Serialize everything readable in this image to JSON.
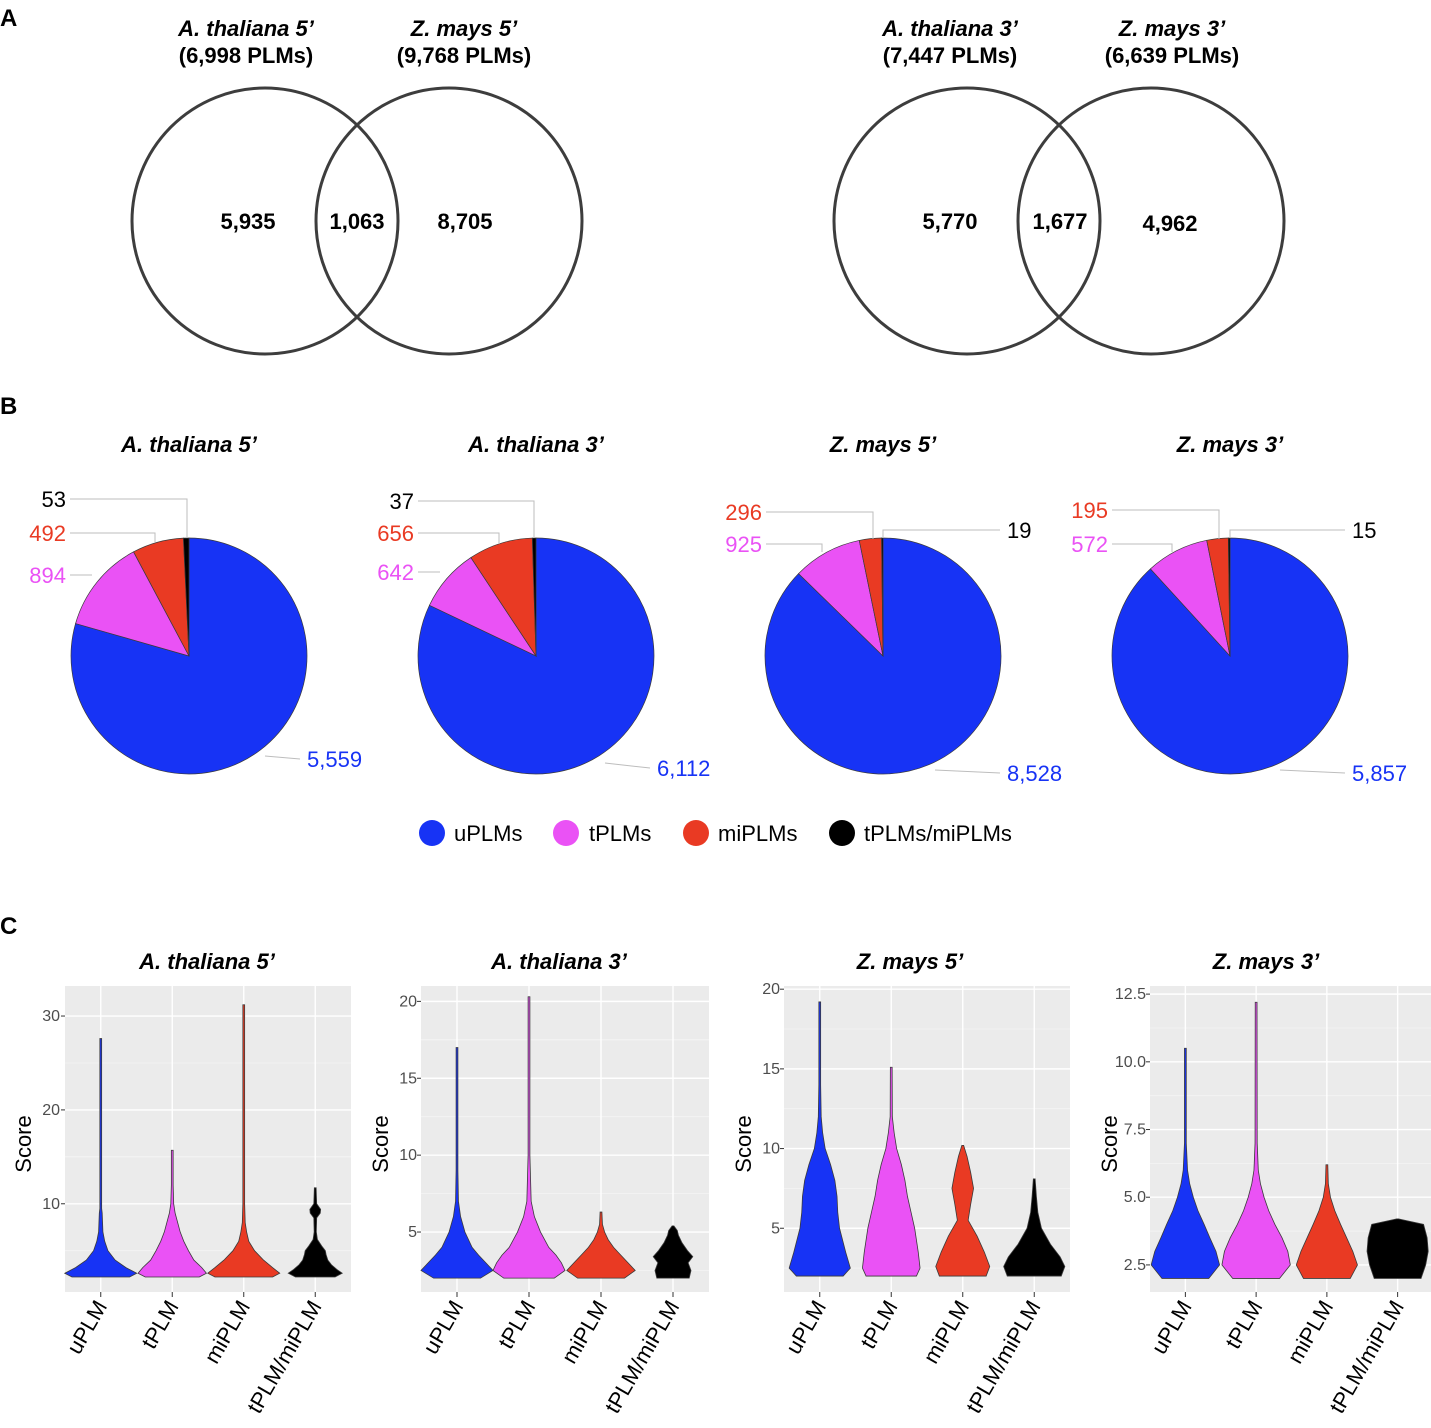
{
  "panels": {
    "a": "A",
    "b": "B",
    "c": "C"
  },
  "colors": {
    "uPLMs": "#1733f5",
    "tPLMs": "#ea52f5",
    "miPLMs": "#e93a23",
    "tPLMs/miPLMs": "#000000",
    "panel_bg": "#ebebeb"
  },
  "chart_data": [
    {
      "type": "venn",
      "sets": [
        {
          "title": "A.  thaliana 5’",
          "subtitle": "(6,998 PLMs)"
        },
        {
          "title": "Z. mays 5’",
          "subtitle": "(9,768 PLMs)"
        }
      ],
      "left_only": "5,935",
      "overlap": "1,063",
      "right_only": "8,705"
    },
    {
      "type": "venn",
      "sets": [
        {
          "title": "A.  thaliana 3’",
          "subtitle": "(7,447 PLMs)"
        },
        {
          "title": "Z. mays 3’",
          "subtitle": "(6,639 PLMs)"
        }
      ],
      "left_only": "5,770",
      "overlap": "1,677",
      "right_only": "4,962"
    },
    {
      "type": "pie",
      "title": "A. thaliana 5’",
      "slices": [
        {
          "category": "uPLMs",
          "value": 5559,
          "label": "5,559"
        },
        {
          "category": "tPLMs",
          "value": 894,
          "label": "894"
        },
        {
          "category": "miPLMs",
          "value": 492,
          "label": "492"
        },
        {
          "category": "tPLMs/miPLMs",
          "value": 53,
          "label": "53"
        }
      ]
    },
    {
      "type": "pie",
      "title": "A. thaliana 3’",
      "slices": [
        {
          "category": "uPLMs",
          "value": 6112,
          "label": "6,112"
        },
        {
          "category": "tPLMs",
          "value": 642,
          "label": "642"
        },
        {
          "category": "miPLMs",
          "value": 656,
          "label": "656"
        },
        {
          "category": "tPLMs/miPLMs",
          "value": 37,
          "label": "37"
        }
      ]
    },
    {
      "type": "pie",
      "title": "Z. mays 5’",
      "slices": [
        {
          "category": "uPLMs",
          "value": 8528,
          "label": "8,528"
        },
        {
          "category": "tPLMs",
          "value": 925,
          "label": "925"
        },
        {
          "category": "miPLMs",
          "value": 296,
          "label": "296"
        },
        {
          "category": "tPLMs/miPLMs",
          "value": 19,
          "label": "19"
        }
      ]
    },
    {
      "type": "pie",
      "title": "Z. mays 3’",
      "slices": [
        {
          "category": "uPLMs",
          "value": 5857,
          "label": "5,857"
        },
        {
          "category": "tPLMs",
          "value": 572,
          "label": "572"
        },
        {
          "category": "miPLMs",
          "value": 195,
          "label": "195"
        },
        {
          "category": "tPLMs/miPLMs",
          "value": 15,
          "label": "15"
        }
      ]
    },
    {
      "type": "violin",
      "title": "A. thaliana 5’",
      "ylabel": "Score",
      "ylim": [
        0.6,
        33.2
      ],
      "yticks": [
        10,
        20,
        30
      ],
      "ytick_labels": [
        "10",
        "20",
        "30"
      ],
      "categories": [
        "uPLM",
        "tPLM",
        "miPLM",
        "tPLM/miPLM"
      ],
      "series": [
        {
          "name": "uPLM",
          "max": 27.6,
          "profile": [
            [
              2.2,
              0.8
            ],
            [
              2.6,
              1
            ],
            [
              3.2,
              0.7
            ],
            [
              4,
              0.4
            ],
            [
              5,
              0.2
            ],
            [
              6,
              0.11
            ],
            [
              7,
              0.06
            ],
            [
              8,
              0.05
            ],
            [
              9,
              0.04
            ],
            [
              9.5,
              0.02
            ],
            [
              11,
              0.012
            ],
            [
              15,
              0.01
            ],
            [
              27.6,
              0
            ]
          ]
        },
        {
          "name": "tPLM",
          "max": 15.7,
          "profile": [
            [
              2.2,
              0.75
            ],
            [
              2.6,
              0.95
            ],
            [
              3.2,
              0.82
            ],
            [
              4,
              0.6
            ],
            [
              5,
              0.45
            ],
            [
              6,
              0.32
            ],
            [
              7,
              0.22
            ],
            [
              8,
              0.15
            ],
            [
              9,
              0.08
            ],
            [
              10,
              0.04
            ],
            [
              12,
              0.015
            ],
            [
              15.7,
              0
            ]
          ]
        },
        {
          "name": "miPLM",
          "max": 31.2,
          "profile": [
            [
              2.2,
              0.8
            ],
            [
              2.6,
              1
            ],
            [
              3.2,
              0.8
            ],
            [
              4,
              0.55
            ],
            [
              5,
              0.3
            ],
            [
              6,
              0.14
            ],
            [
              7,
              0.08
            ],
            [
              8,
              0.04
            ],
            [
              10,
              0.02
            ],
            [
              15,
              0.012
            ],
            [
              25,
              0.01
            ],
            [
              31.2,
              0
            ]
          ]
        },
        {
          "name": "tPLM/miPLM",
          "max": 11.7,
          "profile": [
            [
              2.2,
              0.55
            ],
            [
              2.6,
              0.75
            ],
            [
              3,
              0.6
            ],
            [
              3.5,
              0.45
            ],
            [
              4,
              0.35
            ],
            [
              4.6,
              0.3
            ],
            [
              5,
              0.28
            ],
            [
              5.5,
              0.18
            ],
            [
              6.2,
              0.06
            ],
            [
              7,
              0.03
            ],
            [
              8.5,
              0.04
            ],
            [
              9,
              0.14
            ],
            [
              9.4,
              0.15
            ],
            [
              10,
              0.04
            ],
            [
              11.7,
              0
            ]
          ]
        }
      ]
    },
    {
      "type": "violin",
      "title": "A. thaliana 3’",
      "ylabel": "Score",
      "ylim": [
        1.1,
        21.0
      ],
      "yticks": [
        5,
        10,
        15,
        20
      ],
      "ytick_labels": [
        "5",
        "10",
        "15",
        "20"
      ],
      "categories": [
        "uPLM",
        "tPLM",
        "miPLM",
        "tPLM/miPLM"
      ],
      "series": [
        {
          "name": "uPLM",
          "max": 17.0,
          "profile": [
            [
              2,
              0.65
            ],
            [
              2.5,
              1
            ],
            [
              3,
              0.8
            ],
            [
              3.5,
              0.6
            ],
            [
              4,
              0.42
            ],
            [
              5,
              0.22
            ],
            [
              6,
              0.1
            ],
            [
              7,
              0.04
            ],
            [
              9,
              0.02
            ],
            [
              17,
              0
            ]
          ]
        },
        {
          "name": "tPLM",
          "max": 20.3,
          "profile": [
            [
              2,
              0.7
            ],
            [
              2.5,
              1
            ],
            [
              3,
              0.9
            ],
            [
              3.5,
              0.75
            ],
            [
              4,
              0.55
            ],
            [
              5,
              0.32
            ],
            [
              6,
              0.15
            ],
            [
              7,
              0.06
            ],
            [
              10,
              0.02
            ],
            [
              20.3,
              0
            ]
          ]
        },
        {
          "name": "miPLM",
          "max": 6.3,
          "profile": [
            [
              2,
              0.65
            ],
            [
              2.5,
              0.95
            ],
            [
              3,
              0.75
            ],
            [
              3.5,
              0.55
            ],
            [
              4,
              0.35
            ],
            [
              4.5,
              0.2
            ],
            [
              5,
              0.1
            ],
            [
              5.5,
              0.04
            ],
            [
              6.3,
              0
            ]
          ]
        },
        {
          "name": "tPLM/miPLM",
          "max": 5.4,
          "profile": [
            [
              2,
              0.45
            ],
            [
              2.5,
              0.5
            ],
            [
              3,
              0.42
            ],
            [
              3.4,
              0.55
            ],
            [
              3.8,
              0.4
            ],
            [
              4.3,
              0.25
            ],
            [
              4.8,
              0.15
            ],
            [
              5.1,
              0.12
            ],
            [
              5.4,
              0
            ]
          ]
        }
      ]
    },
    {
      "type": "violin",
      "title": "Z. mays 5’",
      "ylabel": "Score",
      "ylim": [
        1.0,
        20.2
      ],
      "yticks": [
        5,
        10,
        15,
        20
      ],
      "ytick_labels": [
        "5",
        "10",
        "15",
        "20"
      ],
      "categories": [
        "uPLM",
        "tPLM",
        "miPLM",
        "tPLM/miPLM"
      ],
      "series": [
        {
          "name": "uPLM",
          "max": 19.2,
          "profile": [
            [
              2,
              0.65
            ],
            [
              2.5,
              0.85
            ],
            [
              3.5,
              0.72
            ],
            [
              5,
              0.55
            ],
            [
              6,
              0.5
            ],
            [
              7,
              0.48
            ],
            [
              8,
              0.42
            ],
            [
              9,
              0.3
            ],
            [
              10,
              0.15
            ],
            [
              11,
              0.08
            ],
            [
              12,
              0.04
            ],
            [
              14,
              0.02
            ],
            [
              19.2,
              0
            ]
          ]
        },
        {
          "name": "tPLM",
          "max": 15.1,
          "profile": [
            [
              2,
              0.7
            ],
            [
              2.5,
              0.8
            ],
            [
              3.5,
              0.75
            ],
            [
              5,
              0.65
            ],
            [
              6,
              0.55
            ],
            [
              7,
              0.45
            ],
            [
              8,
              0.38
            ],
            [
              9,
              0.28
            ],
            [
              10,
              0.15
            ],
            [
              11,
              0.08
            ],
            [
              12,
              0.03
            ],
            [
              15.1,
              0
            ]
          ]
        },
        {
          "name": "miPLM",
          "max": 10.2,
          "profile": [
            [
              2,
              0.65
            ],
            [
              2.6,
              0.75
            ],
            [
              3.5,
              0.6
            ],
            [
              4.5,
              0.4
            ],
            [
              5.5,
              0.15
            ],
            [
              6.5,
              0.22
            ],
            [
              7.5,
              0.3
            ],
            [
              8.5,
              0.22
            ],
            [
              9.5,
              0.12
            ],
            [
              10.2,
              0
            ]
          ]
        },
        {
          "name": "tPLM/miPLM",
          "max": 8.1,
          "profile": [
            [
              2,
              0.75
            ],
            [
              2.6,
              0.85
            ],
            [
              3.2,
              0.72
            ],
            [
              4,
              0.45
            ],
            [
              5,
              0.2
            ],
            [
              6,
              0.1
            ],
            [
              7,
              0.06
            ],
            [
              8.1,
              0
            ]
          ]
        }
      ]
    },
    {
      "type": "violin",
      "title": "Z. mays 3’",
      "ylabel": "Score",
      "ylim": [
        1.5,
        12.8
      ],
      "yticks": [
        2.5,
        5.0,
        7.5,
        10.0,
        12.5
      ],
      "ytick_labels": [
        "2.5",
        "5.0",
        "7.5",
        "10.0",
        "12.5"
      ],
      "categories": [
        "uPLM",
        "tPLM",
        "miPLM",
        "tPLM/miPLM"
      ],
      "series": [
        {
          "name": "uPLM",
          "max": 10.5,
          "profile": [
            [
              2,
              0.65
            ],
            [
              2.5,
              0.95
            ],
            [
              3,
              0.85
            ],
            [
              3.5,
              0.68
            ],
            [
              4,
              0.52
            ],
            [
              4.5,
              0.35
            ],
            [
              5,
              0.22
            ],
            [
              5.5,
              0.12
            ],
            [
              6,
              0.06
            ],
            [
              7,
              0.02
            ],
            [
              10.5,
              0
            ]
          ]
        },
        {
          "name": "tPLM",
          "max": 12.2,
          "profile": [
            [
              2,
              0.65
            ],
            [
              2.5,
              0.95
            ],
            [
              3,
              0.88
            ],
            [
              3.5,
              0.72
            ],
            [
              4,
              0.52
            ],
            [
              4.5,
              0.35
            ],
            [
              5,
              0.22
            ],
            [
              5.5,
              0.12
            ],
            [
              6,
              0.06
            ],
            [
              7,
              0.03
            ],
            [
              12.2,
              0
            ]
          ]
        },
        {
          "name": "miPLM",
          "max": 6.2,
          "profile": [
            [
              2,
              0.65
            ],
            [
              2.5,
              0.85
            ],
            [
              3,
              0.72
            ],
            [
              3.5,
              0.55
            ],
            [
              4,
              0.38
            ],
            [
              4.5,
              0.22
            ],
            [
              5,
              0.1
            ],
            [
              5.5,
              0.04
            ],
            [
              6.2,
              0
            ]
          ]
        },
        {
          "name": "tPLM/miPLM",
          "max": 4.2,
          "profile": [
            [
              2,
              0.65
            ],
            [
              2.5,
              0.78
            ],
            [
              3,
              0.85
            ],
            [
              3.5,
              0.82
            ],
            [
              4,
              0.72
            ],
            [
              4.2,
              0
            ]
          ]
        }
      ]
    }
  ]
}
